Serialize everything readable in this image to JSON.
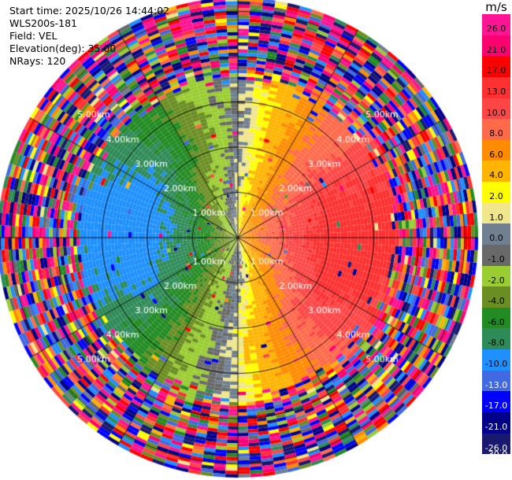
{
  "header": {
    "start_time": "Start time: 2025/10/26 14:44:02",
    "station": "WLS200s-181",
    "field": "Field: VEL",
    "elevation": "Elevation(deg): 35.00",
    "nrays": "NRays: 120"
  },
  "colorbar": {
    "unit": "m/s",
    "labels": [
      "26.0",
      "21.0",
      "17.0",
      "13.0",
      "10.0",
      "8.0",
      "6.0",
      "4.0",
      "2.0",
      "1.0",
      "0.0",
      "-1.0",
      "-2.0",
      "-4.0",
      "-6.0",
      "-8.0",
      "-10.0",
      "-13.0",
      "-17.0",
      "-21.0",
      "-26.0",
      "-30.0"
    ],
    "colors": [
      "#ff1493",
      "#ff0070",
      "#ff0000",
      "#ff3030",
      "#ff4646",
      "#ff6a4a",
      "#ff8c00",
      "#ffb400",
      "#ffff00",
      "#f0e68c",
      "#708090",
      "#696969",
      "#9acd32",
      "#6b8e23",
      "#228b22",
      "#2e8b57",
      "#1e90ff",
      "#4169e1",
      "#0000ff",
      "#00008b",
      "#191970"
    ]
  },
  "chart_data": {
    "type": "heatmap",
    "subtype": "polar PPI scan (doppler radial velocity)",
    "field": "VEL",
    "elevation_deg": 35.0,
    "n_rays": 120,
    "range_rings_km": [
      1.0,
      2.0,
      3.0,
      4.0,
      5.0
    ],
    "ring_labels": [
      "1.00km",
      "2.00km",
      "3.00km",
      "4.00km",
      "5.00km"
    ],
    "max_range_km": 5.3,
    "velocity_scale_ms": [
      -30.0,
      26.0
    ],
    "pattern": {
      "positive_side": "east",
      "negative_side": "west",
      "peak_abs_velocity_ms": 11.5,
      "clean_range_km": 3.4,
      "noise_beyond_km": 3.8
    }
  }
}
